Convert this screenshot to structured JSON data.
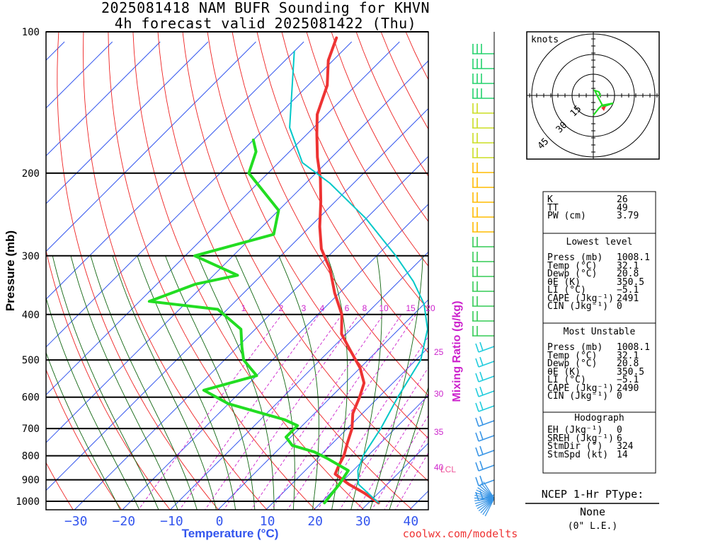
{
  "title": {
    "line1": "2025081418 NAM BUFR Sounding for KHVN",
    "line2": "4h forecast valid 2025081422 (Thu)"
  },
  "axes": {
    "ylabel": "Pressure (mb)",
    "xlabel": "Temperature (°C)",
    "mixing_ratio_label": "Mixing Ratio (g/kg)",
    "credit": "coolwx.com/modelts",
    "lcl_label": "LCL",
    "knots_label": "knots"
  },
  "chart_data": {
    "type": "line",
    "title": "2025081418 NAM BUFR Sounding for KHVN",
    "xlabel": "Temperature (°C)",
    "ylabel": "Pressure (mb)",
    "x_ticks": [
      -30,
      -20,
      -10,
      0,
      10,
      20,
      30,
      40
    ],
    "x_tick_labels": [
      "−30",
      "−20",
      "−10",
      "0",
      "10",
      "20",
      "30",
      "40"
    ],
    "y_ticks": [
      100,
      200,
      300,
      400,
      500,
      600,
      700,
      800,
      900,
      1000
    ],
    "y_scale": "log",
    "ylim": [
      1050,
      100
    ],
    "xlim": [
      -40,
      42
    ],
    "mixing_ratio_labels": [
      "1",
      "2",
      "3",
      "4",
      "6",
      "8",
      "10",
      "15",
      "20",
      "25",
      "30",
      "35",
      "40"
    ],
    "series": [
      {
        "name": "Temperature",
        "color": "#ee3333",
        "points": [
          [
            32.1,
            1008
          ],
          [
            27,
            960
          ],
          [
            22,
            920
          ],
          [
            17,
            875
          ],
          [
            16,
            840
          ],
          [
            15,
            800
          ],
          [
            13,
            750
          ],
          [
            11,
            700
          ],
          [
            8,
            650
          ],
          [
            6,
            600
          ],
          [
            4,
            560
          ],
          [
            0,
            520
          ],
          [
            -6,
            475
          ],
          [
            -11,
            440
          ],
          [
            -15,
            400
          ],
          [
            -21,
            360
          ],
          [
            -27,
            320
          ],
          [
            -33,
            290
          ],
          [
            -38,
            260
          ],
          [
            -43,
            230
          ],
          [
            -48,
            205
          ],
          [
            -53,
            185
          ],
          [
            -58,
            165
          ],
          [
            -62,
            150
          ],
          [
            -66,
            130
          ],
          [
            -71,
            115
          ],
          [
            -74,
            103
          ]
        ]
      },
      {
        "name": "Dewpoint",
        "color": "#22dd22",
        "points": [
          [
            20.8,
            1008
          ],
          [
            20,
            920
          ],
          [
            19,
            860
          ],
          [
            12,
            810
          ],
          [
            8,
            785
          ],
          [
            2,
            760
          ],
          [
            -1,
            730
          ],
          [
            -1,
            690
          ],
          [
            -5,
            670
          ],
          [
            -20,
            620
          ],
          [
            -28,
            580
          ],
          [
            -20,
            540
          ],
          [
            -26,
            500
          ],
          [
            -29,
            470
          ],
          [
            -33,
            430
          ],
          [
            -42,
            390
          ],
          [
            -58,
            375
          ],
          [
            -52,
            345
          ],
          [
            -45,
            330
          ],
          [
            -58,
            300
          ],
          [
            -46,
            270
          ],
          [
            -50,
            240
          ],
          [
            -64,
            200
          ],
          [
            -67,
            180
          ],
          [
            -70,
            170
          ]
        ]
      },
      {
        "name": "Parcel",
        "color": "#00c8c8",
        "points": [
          [
            32.1,
            1008
          ],
          [
            24,
            920
          ],
          [
            21,
            860
          ],
          [
            19,
            800
          ],
          [
            17,
            700
          ],
          [
            14,
            600
          ],
          [
            11,
            500
          ],
          [
            6,
            430
          ],
          [
            0,
            380
          ],
          [
            -7,
            340
          ],
          [
            -16,
            300
          ],
          [
            -30,
            250
          ],
          [
            -45,
            210
          ],
          [
            -55,
            190
          ],
          [
            -65,
            160
          ],
          [
            -80,
            110
          ]
        ]
      }
    ]
  },
  "wind_barb_colors": [
    "#3a96e6",
    "#2ecce0",
    "#22d26c",
    "#aadd00",
    "#ffcc00",
    "#ffaa00",
    "#33cc33"
  ],
  "hodograph": {
    "ring_labels": [
      "15",
      "30",
      "45"
    ],
    "trace_color": "#22dd22",
    "storm_marker_color": "#ee3333"
  },
  "indices": {
    "rows": [
      {
        "label": "K",
        "value": "26"
      },
      {
        "label": "TT",
        "value": "49"
      },
      {
        "label": "PW (cm)",
        "value": "3.79"
      }
    ],
    "lowest": {
      "header": "Lowest level",
      "rows": [
        {
          "label": "Press (mb)",
          "value": "1008.1"
        },
        {
          "label": "Temp (°C)",
          "value": "32.1"
        },
        {
          "label": "Dewp (°C)",
          "value": "20.8"
        },
        {
          "label": "θE (K)",
          "value": "350.5"
        },
        {
          "label": "LI (°C)",
          "value": "−5.1"
        },
        {
          "label": "CAPE (Jkg⁻¹)",
          "value": "2491"
        },
        {
          "label": "CIN (Jkg⁻¹)",
          "value": "0"
        }
      ]
    },
    "unstable": {
      "header": "Most Unstable",
      "rows": [
        {
          "label": "Press (mb)",
          "value": "1008.1"
        },
        {
          "label": "Temp (°C)",
          "value": "32.1"
        },
        {
          "label": "Dewp (°C)",
          "value": "20.8"
        },
        {
          "label": "θE (K)",
          "value": "350.5"
        },
        {
          "label": "LI (°C)",
          "value": "−5.1"
        },
        {
          "label": "CAPE (Jkg⁻¹)",
          "value": "2490"
        },
        {
          "label": "CIN (Jkg⁻¹)",
          "value": "0"
        }
      ]
    },
    "hodo": {
      "header": "Hodograph",
      "rows": [
        {
          "label": "EH (Jkg⁻¹)",
          "value": "0"
        },
        {
          "label": "SREH (Jkg⁻¹)",
          "value": "6"
        },
        {
          "label": "StmDir (°)",
          "value": "324"
        },
        {
          "label": "StmSpd (kt)",
          "value": "14"
        }
      ]
    }
  },
  "ptype": {
    "header": "NCEP 1-Hr PType:",
    "value": "None",
    "sub": "(0\" L.E.)"
  }
}
